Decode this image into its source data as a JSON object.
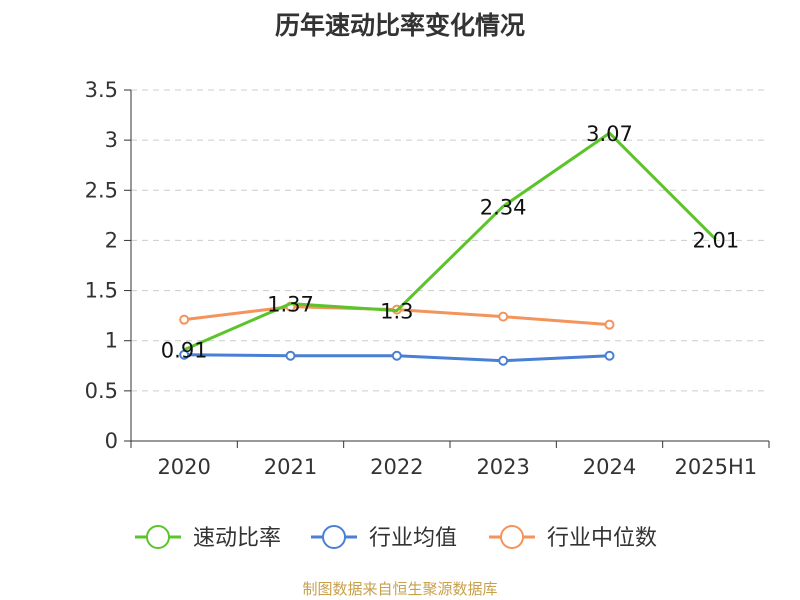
{
  "chart_data": {
    "type": "line",
    "title": "历年速动比率变化情况",
    "categories": [
      "2020",
      "2021",
      "2022",
      "2023",
      "2024",
      "2025H1"
    ],
    "ylim": [
      0,
      3.5
    ],
    "yticks": [
      "0",
      "0.5",
      "1",
      "1.5",
      "2",
      "2.5",
      "3",
      "3.5"
    ],
    "grid": true,
    "legend_position": "bottom",
    "series": [
      {
        "name": "速动比率",
        "color": "#5bc42a",
        "values": [
          0.91,
          1.37,
          1.3,
          2.34,
          3.07,
          2.01
        ],
        "labels": [
          "0.91",
          "1.37",
          "1.3",
          "2.34",
          "3.07",
          "2.01"
        ]
      },
      {
        "name": "行业均值",
        "color": "#4a7fd6",
        "values": [
          0.86,
          0.85,
          0.85,
          0.8,
          0.85,
          null
        ]
      },
      {
        "name": "行业中位数",
        "color": "#f4935a",
        "values": [
          1.21,
          1.34,
          1.31,
          1.24,
          1.16,
          null
        ]
      }
    ]
  },
  "source_note": "制图数据来自恒生聚源数据库"
}
